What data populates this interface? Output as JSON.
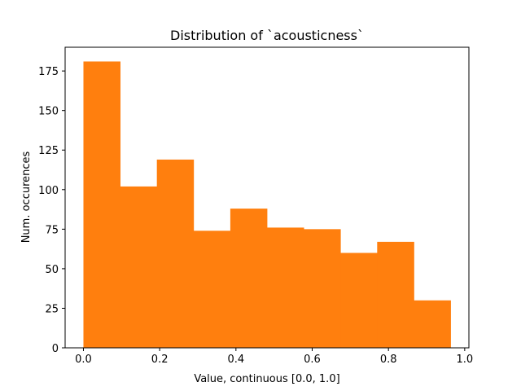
{
  "chart_data": {
    "type": "bar",
    "title": "Distribution of `acousticness`",
    "xlabel": "Value, continuous [0.0, 1.0]",
    "ylabel": "Num. occurences",
    "bin_edges": [
      0.0,
      0.0963,
      0.1926,
      0.2889,
      0.3852,
      0.4815,
      0.5778,
      0.6741,
      0.7704,
      0.8667,
      0.963
    ],
    "values": [
      181,
      102,
      119,
      74,
      88,
      76,
      75,
      60,
      67,
      30
    ],
    "xlim": [
      -0.048,
      1.011
    ],
    "ylim": [
      0,
      190
    ],
    "xticks": [
      0.0,
      0.2,
      0.4,
      0.6,
      0.8,
      1.0
    ],
    "xtick_labels": [
      "0.0",
      "0.2",
      "0.4",
      "0.6",
      "0.8",
      "1.0"
    ],
    "yticks": [
      0,
      25,
      50,
      75,
      100,
      125,
      150,
      175
    ],
    "ytick_labels": [
      "0",
      "25",
      "50",
      "75",
      "100",
      "125",
      "150",
      "175"
    ],
    "bar_color": "#ff7f0e",
    "grid": false,
    "legend": "none"
  }
}
